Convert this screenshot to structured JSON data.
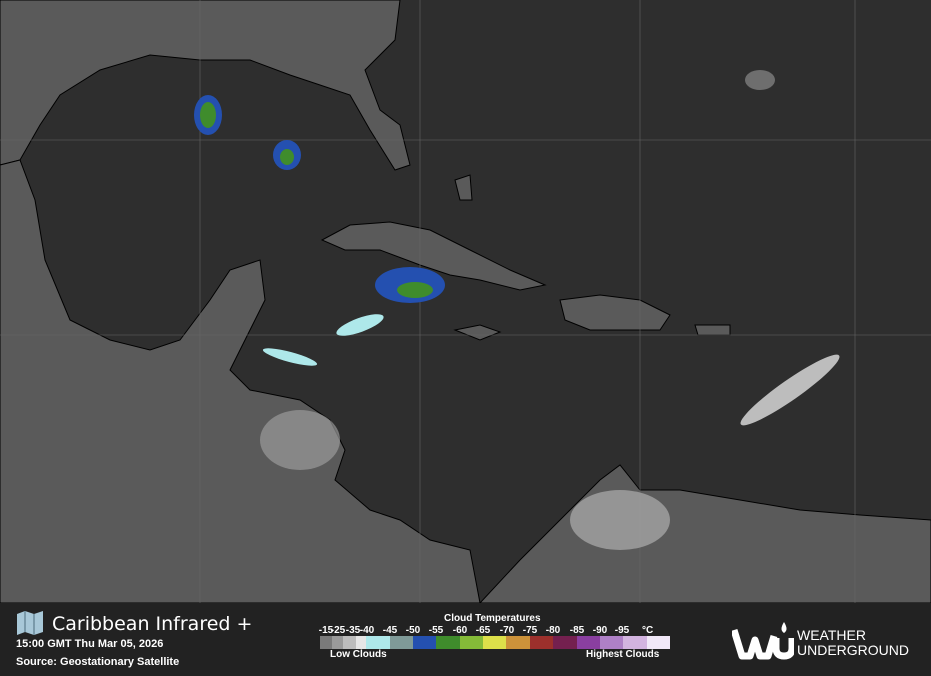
{
  "map": {
    "land_color": "#5a5a5a",
    "ocean_color": "#2e2e2e",
    "border_color": "#000000"
  },
  "legend": {
    "title": "Caribbean Infrared +",
    "map_icon": "map-icon",
    "timestamp": "15:00 GMT Thu Mar 05, 2026",
    "source": "Source: Geostationary Satellite",
    "scale": {
      "title": "Cloud Temperatures",
      "ticks": [
        "-15",
        "-25",
        "-35",
        "-40",
        "-45",
        "-50",
        "-55",
        "-60",
        "-65",
        "-70",
        "-75",
        "-80",
        "-85",
        "-90",
        "-95"
      ],
      "unit": "°C",
      "colors": [
        "#7a7a7a",
        "#9a9a9a",
        "#bdbdbd",
        "#e6e6e6",
        "#aee8ea",
        "#7f9a98",
        "#2450b0",
        "#3f8c2c",
        "#85bb38",
        "#dde04a",
        "#cc923a",
        "#9c302c",
        "#74204f",
        "#8a3fa0",
        "#ae80c6",
        "#d3b4e0",
        "#f1e8f8"
      ],
      "low_label": "Low Clouds",
      "high_label": "Highest Clouds"
    },
    "brand": {
      "line1": "WEATHER",
      "line2": "UNDERGROUND"
    }
  }
}
